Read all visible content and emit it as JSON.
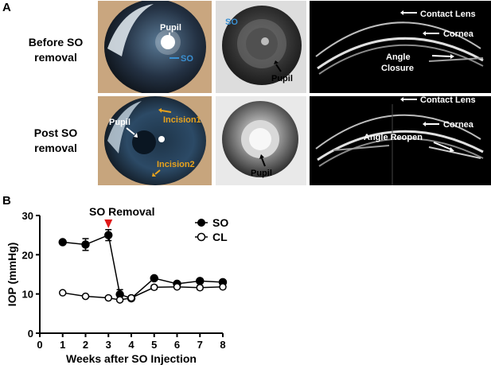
{
  "panel_a": {
    "letter": "A",
    "rows": [
      {
        "label_line1": "Before SO",
        "label_line2": "removal"
      },
      {
        "label_line1": "Post SO",
        "label_line2": "removal"
      }
    ],
    "photo_labels": {
      "r1_pupil": "Pupil",
      "r1_so": "SO",
      "r1_so2": "SO",
      "r1_pupil2": "Pupil",
      "r1_contact": "Contact Lens",
      "r1_cornea": "Cornea",
      "r1_angle1": "Angle",
      "r1_angle2": "Closure",
      "r2_pupil": "Pupil",
      "r2_incision1": "Incision1",
      "r2_incision2": "Incision2",
      "r2_pupil2": "Pupil",
      "r2_contact": "Contact Lens",
      "r2_cornea": "Cornea",
      "r2_angle": "Angle Reopen"
    },
    "colors": {
      "so_label": "#3a8fd1",
      "incision_label": "#e8a21c"
    }
  },
  "panel_b": {
    "letter": "B"
  },
  "chart_data": {
    "type": "line",
    "annotation": "SO Removal",
    "annotation_x": 3,
    "annotation_color": "#e01818",
    "xlabel": "Weeks after SO Injection",
    "ylabel": "IOP (mmHg)",
    "xlim": [
      0,
      8
    ],
    "ylim": [
      0,
      30
    ],
    "xticks": [
      0,
      1,
      2,
      3,
      4,
      5,
      6,
      7,
      8
    ],
    "yticks": [
      0,
      10,
      20,
      30
    ],
    "series": [
      {
        "name": "SO",
        "marker": "filled",
        "x": [
          1,
          2,
          3,
          3.5,
          4,
          5,
          6,
          7,
          8
        ],
        "y": [
          23.2,
          22.6,
          25.0,
          9.9,
          8.9,
          14.0,
          12.6,
          13.3,
          13.0
        ],
        "err": [
          0.5,
          1.5,
          1.4,
          1.2,
          0.6,
          0.5,
          0.5,
          0.5,
          0.4
        ]
      },
      {
        "name": "CL",
        "marker": "open",
        "x": [
          1,
          2,
          3,
          3.5,
          4,
          5,
          6,
          7,
          8
        ],
        "y": [
          10.3,
          9.4,
          9.0,
          8.5,
          9.0,
          11.7,
          11.8,
          11.6,
          11.8
        ],
        "err": [
          0.3,
          0.4,
          0.4,
          0.4,
          0.4,
          0.5,
          0.4,
          0.5,
          0.4
        ]
      }
    ],
    "legend_position": "top-right"
  }
}
